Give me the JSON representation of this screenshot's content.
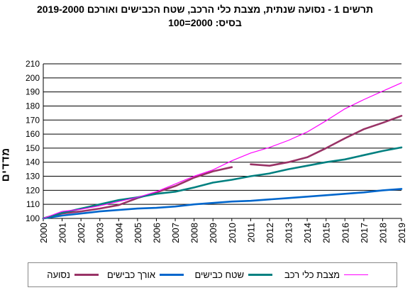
{
  "title_line1": "תרשים 1 - נסועה שנתית, מצבת כלי הרכב, שטח הכבישים ואורכם 2019-2000",
  "title_line2": "בסיס: 2000=100",
  "chart_data": {
    "type": "line",
    "ylabel": "מדדים",
    "xlabel": "",
    "categories": [
      "2000",
      "2001",
      "2002",
      "2003",
      "2004",
      "2005",
      "2006",
      "2007",
      "2008",
      "2009",
      "2010",
      "2011",
      "2012",
      "2013",
      "2014",
      "2015",
      "2016",
      "2017",
      "2018",
      "2019"
    ],
    "ylim": [
      100,
      210
    ],
    "yticks": [
      100,
      110,
      120,
      130,
      140,
      150,
      160,
      170,
      180,
      190,
      200,
      210
    ],
    "grid": "horizontal",
    "legend_position": "bottom",
    "series": [
      {
        "name": "נסועה",
        "color": "#993366",
        "values": [
          100,
          103.5,
          105,
          107,
          109.5,
          114.5,
          118.5,
          123,
          129,
          133.5,
          136.5,
          null,
          null,
          null,
          null,
          null,
          null,
          null,
          null,
          null
        ]
      },
      {
        "name": "נסועה",
        "color": "#993366",
        "legend": false,
        "values": [
          null,
          null,
          null,
          null,
          null,
          null,
          null,
          null,
          null,
          null,
          null,
          138.5,
          137.5,
          140,
          143.5,
          150,
          157,
          163.5,
          168,
          173
        ]
      },
      {
        "name": "אורך כבישים",
        "color": "#0066cc",
        "values": [
          100,
          102,
          103.5,
          105,
          106,
          107,
          107.5,
          108.5,
          110,
          111,
          112,
          112.5,
          113.5,
          114.5,
          115.5,
          116.5,
          117.5,
          118.5,
          120,
          121
        ]
      },
      {
        "name": "שטח כבישים",
        "color": "#008080",
        "values": [
          100,
          104,
          107,
          110,
          113,
          115,
          117.5,
          119,
          122,
          125.5,
          127.5,
          130,
          132,
          135,
          137.5,
          140,
          142,
          145,
          148,
          150.5
        ]
      },
      {
        "name": "מצבת כלי רכב",
        "color": "#ff00ff",
        "values": [
          100,
          105,
          106.5,
          109,
          112,
          115,
          119,
          124.5,
          130,
          134.5,
          141,
          146.5,
          150.5,
          155.5,
          161.5,
          169.5,
          178,
          184.5,
          190.5,
          196.5
        ]
      }
    ]
  }
}
